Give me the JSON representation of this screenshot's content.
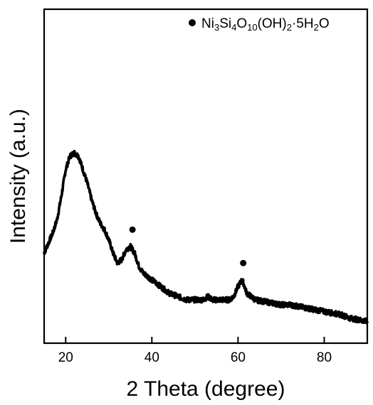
{
  "chart_data": {
    "type": "line",
    "xlabel": "2 Theta (degree)",
    "ylabel": "Intensity (a.u.)",
    "xlim": [
      15,
      90
    ],
    "ylim": [
      0,
      100
    ],
    "xticks": [
      20,
      40,
      60,
      80
    ],
    "yticks_shown": false,
    "grid": false,
    "legend": {
      "placement": "top-right",
      "marker": "filled-circle",
      "label": "Ni3Si4O10(OH)2·5H2O",
      "label_parts": [
        {
          "t": "Ni"
        },
        {
          "t": "3",
          "sub": true
        },
        {
          "t": "Si"
        },
        {
          "t": "4",
          "sub": true
        },
        {
          "t": "O"
        },
        {
          "t": "10",
          "sub": true
        },
        {
          "t": "(OH)"
        },
        {
          "t": "2",
          "sub": true
        },
        {
          "t": "·5H"
        },
        {
          "t": "2",
          "sub": true
        },
        {
          "t": "O"
        }
      ]
    },
    "series": [
      {
        "x": [
          15,
          16,
          17,
          18,
          19,
          20,
          21,
          22,
          23,
          24,
          25,
          26,
          27,
          28,
          29,
          30,
          31,
          32,
          33,
          34,
          35,
          36,
          37,
          38,
          39,
          40,
          42,
          44,
          46,
          48,
          50,
          52,
          53,
          54,
          56,
          58,
          59,
          60,
          61,
          62,
          63,
          64,
          66,
          68,
          70,
          72,
          74,
          76,
          78,
          80,
          82,
          84,
          86,
          88,
          90
        ],
        "y": [
          27,
          30,
          33,
          37,
          44,
          52,
          56,
          57,
          56,
          52,
          48,
          43,
          39,
          36,
          34,
          31,
          27,
          24,
          25,
          28,
          29,
          27,
          23,
          21,
          20,
          19,
          17,
          15,
          14,
          13,
          13,
          13,
          14,
          13,
          13,
          13,
          14,
          17,
          19,
          15,
          14,
          13,
          12.5,
          12,
          11.5,
          11.5,
          11,
          10.5,
          10,
          9.5,
          9,
          8.5,
          7.5,
          7,
          6.5
        ],
        "color": "#000000"
      }
    ],
    "peak_markers": [
      {
        "x": 35.5,
        "y": 34
      },
      {
        "x": 61.2,
        "y": 24
      }
    ]
  }
}
